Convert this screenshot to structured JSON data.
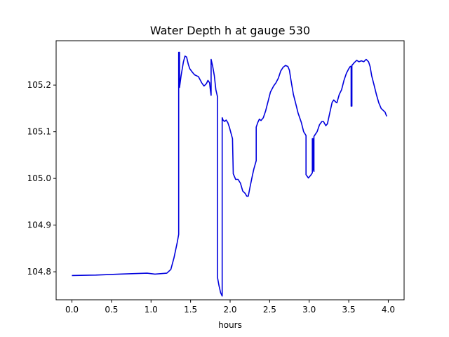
{
  "chart_data": {
    "type": "line",
    "title": "Water Depth h at gauge 530",
    "xlabel": "hours",
    "ylabel": "",
    "xlim": [
      -0.2,
      4.2
    ],
    "ylim": [
      104.74,
      105.295
    ],
    "xticks": [
      0.0,
      0.5,
      1.0,
      1.5,
      2.0,
      2.5,
      3.0,
      3.5,
      4.0
    ],
    "xtick_labels": [
      "0.0",
      "0.5",
      "1.0",
      "1.5",
      "2.0",
      "2.5",
      "3.0",
      "3.5",
      "4.0"
    ],
    "yticks": [
      104.8,
      104.9,
      105.0,
      105.1,
      105.2
    ],
    "ytick_labels": [
      "104.8",
      "104.9",
      "105.0",
      "105.1",
      "105.2"
    ],
    "grid": false,
    "series": [
      {
        "color": "#0000dd",
        "points": [
          [
            0.0,
            104.792
          ],
          [
            0.3,
            104.793
          ],
          [
            0.6,
            104.795
          ],
          [
            0.95,
            104.797
          ],
          [
            1.05,
            104.795
          ],
          [
            1.2,
            104.797
          ],
          [
            1.25,
            104.805
          ],
          [
            1.29,
            104.83
          ],
          [
            1.33,
            104.862
          ],
          [
            1.35,
            104.88
          ],
          [
            1.35,
            105.27
          ],
          [
            1.36,
            105.27
          ],
          [
            1.36,
            105.195
          ],
          [
            1.38,
            105.22
          ],
          [
            1.41,
            105.25
          ],
          [
            1.43,
            105.262
          ],
          [
            1.45,
            105.26
          ],
          [
            1.47,
            105.245
          ],
          [
            1.49,
            105.235
          ],
          [
            1.52,
            105.228
          ],
          [
            1.55,
            105.222
          ],
          [
            1.6,
            105.218
          ],
          [
            1.64,
            105.205
          ],
          [
            1.67,
            105.198
          ],
          [
            1.7,
            105.203
          ],
          [
            1.72,
            105.21
          ],
          [
            1.74,
            105.205
          ],
          [
            1.75,
            105.19
          ],
          [
            1.76,
            105.178
          ],
          [
            1.76,
            105.255
          ],
          [
            1.78,
            105.24
          ],
          [
            1.8,
            105.22
          ],
          [
            1.82,
            105.19
          ],
          [
            1.84,
            105.175
          ],
          [
            1.84,
            104.788
          ],
          [
            1.86,
            104.77
          ],
          [
            1.88,
            104.755
          ],
          [
            1.9,
            104.748
          ],
          [
            1.9,
            105.13
          ],
          [
            1.91,
            105.125
          ],
          [
            1.93,
            105.122
          ],
          [
            1.95,
            105.125
          ],
          [
            1.97,
            105.12
          ],
          [
            1.99,
            105.11
          ],
          [
            2.03,
            105.085
          ],
          [
            2.04,
            105.01
          ],
          [
            2.07,
            104.998
          ],
          [
            2.1,
            104.998
          ],
          [
            2.13,
            104.99
          ],
          [
            2.16,
            104.973
          ],
          [
            2.19,
            104.968
          ],
          [
            2.21,
            104.962
          ],
          [
            2.23,
            104.962
          ],
          [
            2.25,
            104.98
          ],
          [
            2.28,
            105.005
          ],
          [
            2.3,
            105.02
          ],
          [
            2.33,
            105.038
          ],
          [
            2.33,
            105.11
          ],
          [
            2.35,
            105.12
          ],
          [
            2.37,
            105.127
          ],
          [
            2.39,
            105.124
          ],
          [
            2.42,
            105.13
          ],
          [
            2.45,
            105.145
          ],
          [
            2.48,
            105.165
          ],
          [
            2.51,
            105.185
          ],
          [
            2.55,
            105.198
          ],
          [
            2.58,
            105.205
          ],
          [
            2.61,
            105.215
          ],
          [
            2.64,
            105.23
          ],
          [
            2.67,
            105.238
          ],
          [
            2.7,
            105.242
          ],
          [
            2.73,
            105.24
          ],
          [
            2.75,
            105.232
          ],
          [
            2.77,
            105.21
          ],
          [
            2.8,
            105.18
          ],
          [
            2.83,
            105.16
          ],
          [
            2.86,
            105.14
          ],
          [
            2.9,
            105.12
          ],
          [
            2.93,
            105.1
          ],
          [
            2.96,
            105.092
          ],
          [
            2.96,
            105.008
          ],
          [
            2.99,
            105.001
          ],
          [
            3.02,
            105.007
          ],
          [
            3.04,
            105.012
          ],
          [
            3.04,
            105.085
          ],
          [
            3.05,
            105.085
          ],
          [
            3.05,
            105.02
          ],
          [
            3.06,
            105.015
          ],
          [
            3.06,
            105.09
          ],
          [
            3.08,
            105.095
          ],
          [
            3.1,
            105.1
          ],
          [
            3.13,
            105.115
          ],
          [
            3.16,
            105.122
          ],
          [
            3.18,
            105.122
          ],
          [
            3.21,
            105.113
          ],
          [
            3.23,
            105.117
          ],
          [
            3.26,
            105.14
          ],
          [
            3.29,
            105.163
          ],
          [
            3.31,
            105.168
          ],
          [
            3.34,
            105.163
          ],
          [
            3.35,
            105.162
          ],
          [
            3.38,
            105.18
          ],
          [
            3.41,
            105.19
          ],
          [
            3.44,
            105.21
          ],
          [
            3.47,
            105.225
          ],
          [
            3.5,
            105.235
          ],
          [
            3.52,
            105.24
          ],
          [
            3.53,
            105.24
          ],
          [
            3.53,
            105.155
          ],
          [
            3.54,
            105.155
          ],
          [
            3.54,
            105.242
          ],
          [
            3.57,
            105.248
          ],
          [
            3.6,
            105.253
          ],
          [
            3.63,
            105.25
          ],
          [
            3.66,
            105.252
          ],
          [
            3.69,
            105.25
          ],
          [
            3.72,
            105.255
          ],
          [
            3.75,
            105.25
          ],
          [
            3.77,
            105.24
          ],
          [
            3.79,
            105.22
          ],
          [
            3.82,
            105.2
          ],
          [
            3.85,
            105.18
          ],
          [
            3.88,
            105.162
          ],
          [
            3.91,
            105.15
          ],
          [
            3.94,
            105.145
          ],
          [
            3.96,
            105.142
          ],
          [
            3.97,
            105.137
          ],
          [
            3.98,
            105.133
          ]
        ]
      }
    ]
  }
}
